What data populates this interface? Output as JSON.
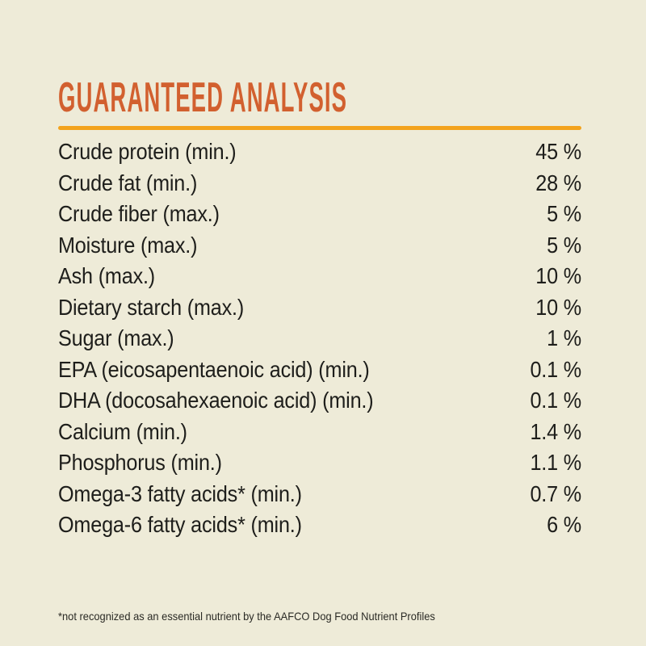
{
  "page": {
    "background_color": "#eeebd8"
  },
  "header": {
    "title": "GUARANTEED ANALYSIS",
    "title_color": "#d2602f",
    "rule_color": "#f3a31d"
  },
  "analysis_table": {
    "rows": [
      {
        "label": "Crude protein (min.)",
        "value": "45 %"
      },
      {
        "label": "Crude fat (min.)",
        "value": "28 %"
      },
      {
        "label": "Crude fiber (max.)",
        "value": "5 %"
      },
      {
        "label": "Moisture (max.)",
        "value": "5 %"
      },
      {
        "label": "Ash (max.)",
        "value": "10 %"
      },
      {
        "label": "Dietary starch (max.)",
        "value": "10 %"
      },
      {
        "label": "Sugar (max.)",
        "value": "1 %"
      },
      {
        "label": "EPA (eicosapentaenoic acid) (min.)",
        "value": "0.1 %"
      },
      {
        "label": "DHA (docosahexaenoic acid) (min.)",
        "value": "0.1 %"
      },
      {
        "label": "Calcium (min.)",
        "value": "1.4 %"
      },
      {
        "label": "Phosphorus (min.)",
        "value": "1.1 %"
      },
      {
        "label": "Omega-3 fatty acids* (min.)",
        "value": "0.7 %"
      },
      {
        "label": "Omega-6 fatty acids* (min.)",
        "value": "6 %"
      }
    ]
  },
  "footnote": {
    "text": "*not recognized as an essential nutrient by the AAFCO Dog Food Nutrient Profiles"
  }
}
